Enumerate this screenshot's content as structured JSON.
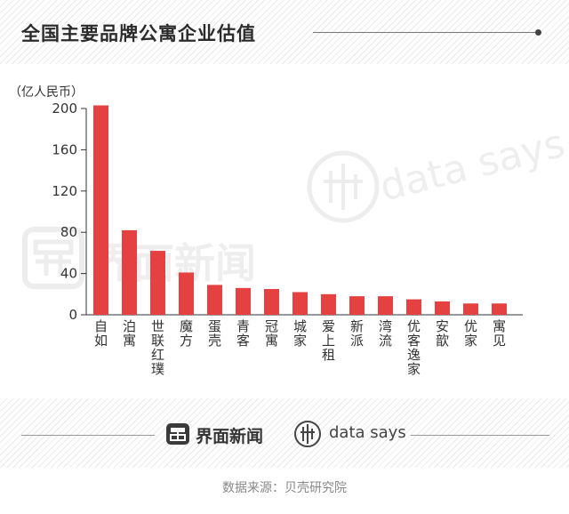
{
  "title": "全国主要品牌公寓企业估值",
  "source": "数据来源：贝壳研究院",
  "brand": {
    "jiemian": "界面新闻",
    "datasays": "data says"
  },
  "colors": {
    "bar": "#e64141",
    "axis": "#333333",
    "text": "#333333",
    "watermark": "#ededed"
  },
  "chart_data": {
    "type": "bar",
    "title": "全国主要品牌公寓企业估值",
    "ylabel": "（亿人民币）",
    "xlabel": "",
    "ylim": [
      0,
      200
    ],
    "yticks": [
      0,
      40,
      80,
      120,
      160,
      200
    ],
    "grid": false,
    "categories": [
      "自如",
      "泊寓",
      "世联红璞",
      "魔方",
      "蛋壳",
      "青客",
      "冠寓",
      "城家",
      "爱上租",
      "新派",
      "湾流",
      "优客逸家",
      "安歆",
      "优家",
      "寓见"
    ],
    "values": [
      203,
      82,
      62,
      41,
      29,
      26,
      25,
      22,
      20,
      18,
      18,
      15,
      13,
      11,
      11
    ]
  }
}
